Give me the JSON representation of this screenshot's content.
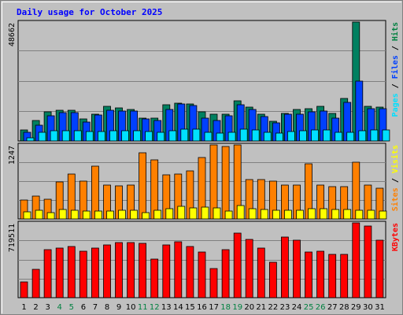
{
  "chart_data": {
    "type": "bar",
    "title": "Daily usage for October 2025",
    "categories": [
      "1",
      "2",
      "3",
      "4",
      "5",
      "6",
      "7",
      "8",
      "9",
      "10",
      "11",
      "12",
      "13",
      "14",
      "15",
      "16",
      "17",
      "18",
      "19",
      "20",
      "21",
      "22",
      "23",
      "24",
      "25",
      "26",
      "27",
      "28",
      "29",
      "30",
      "31"
    ],
    "weekend_days": [
      "4",
      "5",
      "11",
      "12",
      "18",
      "19",
      "25",
      "26"
    ],
    "panels": [
      {
        "id": "hits-files-pages",
        "max_label": "48662",
        "ylim": [
          0,
          48662
        ],
        "side_label": [
          {
            "text": "Pages",
            "color": "#00e0ff"
          },
          {
            "text": " / ",
            "color": "#000000"
          },
          {
            "text": "Files",
            "color": "#0040ff"
          },
          {
            "text": " / ",
            "color": "#000000"
          },
          {
            "text": "Hits",
            "color": "#008040"
          }
        ],
        "series": [
          {
            "name": "Hits",
            "color": "#008060",
            "values": [
              4400,
              8400,
              11800,
              12700,
              12700,
              9100,
              11100,
              14300,
              13400,
              13000,
              9400,
              9400,
              14700,
              15600,
              15000,
              11800,
              10800,
              11100,
              16400,
              13900,
              11000,
              7900,
              11400,
              13000,
              13200,
              14300,
              11300,
              17500,
              48662,
              14100,
              13900
            ]
          },
          {
            "name": "Files",
            "color": "#0040ff",
            "values": [
              3500,
              6600,
              10200,
              11700,
              11500,
              7700,
              10500,
              12500,
              12300,
              12100,
              8900,
              8400,
              12800,
              15000,
              14400,
              9400,
              8400,
              10400,
              14900,
              13000,
              10000,
              7400,
              10800,
              11100,
              11800,
              12300,
              9500,
              15700,
              24500,
              13300,
              13200
            ]
          },
          {
            "name": "Pages",
            "color": "#00e0ff",
            "values": [
              1400,
              3400,
              4100,
              4200,
              4300,
              3800,
              4000,
              4300,
              4100,
              4100,
              3900,
              3600,
              4200,
              4800,
              4700,
              3400,
              3100,
              3700,
              4800,
              4600,
              3700,
              3200,
              3800,
              4300,
              4400,
              4500,
              3700,
              3600,
              4200,
              4600,
              4500
            ]
          }
        ]
      },
      {
        "id": "visits-sites",
        "max_label": "1247",
        "ylim": [
          0,
          1247
        ],
        "side_label": [
          {
            "text": "Sites",
            "color": "#ff8000"
          },
          {
            "text": " / ",
            "color": "#000000"
          },
          {
            "text": "Visits",
            "color": "#ffff00"
          }
        ],
        "series": [
          {
            "name": "Visits",
            "color": "#ff8000",
            "values": [
              320,
              390,
              330,
              620,
              760,
              640,
              890,
              570,
              560,
              570,
              1110,
              990,
              740,
              750,
              810,
              1030,
              1247,
              1215,
              1247,
              660,
              660,
              640,
              570,
              570,
              930,
              570,
              540,
              540,
              950,
              570,
              520
            ]
          },
          {
            "name": "Sites",
            "color": "#ffff00",
            "values": [
              120,
              140,
              100,
              160,
              150,
              130,
              130,
              130,
              150,
              140,
              110,
              140,
              170,
              210,
              190,
              200,
              180,
              130,
              220,
              170,
              160,
              150,
              150,
              150,
              170,
              170,
              160,
              160,
              150,
              140,
              130
            ]
          }
        ]
      },
      {
        "id": "kbytes",
        "max_label": "719511",
        "ylim": [
          0,
          719511
        ],
        "side_label": [
          {
            "text": "KBytes",
            "color": "#ff0000"
          }
        ],
        "series": [
          {
            "name": "KBytes",
            "color": "#ff0000",
            "values": [
              150000,
              270000,
              460000,
              480000,
              490000,
              450000,
              480000,
              510000,
              530000,
              530000,
              520000,
              370000,
              510000,
              540000,
              490000,
              440000,
              280000,
              460000,
              620000,
              560000,
              480000,
              340000,
              580000,
              550000,
              440000,
              450000,
              420000,
              420000,
              719511,
              690000,
              550000
            ]
          }
        ]
      }
    ]
  }
}
